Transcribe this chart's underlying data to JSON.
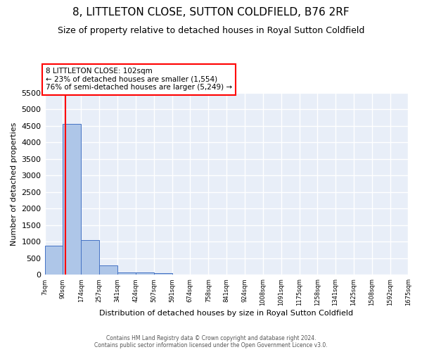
{
  "title": "8, LITTLETON CLOSE, SUTTON COLDFIELD, B76 2RF",
  "subtitle": "Size of property relative to detached houses in Royal Sutton Coldfield",
  "xlabel": "Distribution of detached houses by size in Royal Sutton Coldfield",
  "ylabel": "Number of detached properties",
  "footer_line1": "Contains HM Land Registry data © Crown copyright and database right 2024.",
  "footer_line2": "Contains public sector information licensed under the Open Government Licence v3.0.",
  "bar_edges": [
    7,
    90,
    174,
    257,
    341,
    424,
    507,
    591,
    674,
    758,
    841,
    924,
    1008,
    1091,
    1175,
    1258,
    1341,
    1425,
    1508,
    1592,
    1675
  ],
  "bar_heights": [
    880,
    4560,
    1060,
    290,
    80,
    70,
    50,
    0,
    0,
    0,
    0,
    0,
    0,
    0,
    0,
    0,
    0,
    0,
    0,
    0
  ],
  "bar_color": "#aec6e8",
  "bar_edge_color": "#4472c4",
  "property_line_x": 102,
  "property_line_color": "red",
  "annotation_text": "8 LITTLETON CLOSE: 102sqm\n← 23% of detached houses are smaller (1,554)\n76% of semi-detached houses are larger (5,249) →",
  "annotation_box_color": "red",
  "ylim": [
    0,
    5500
  ],
  "yticks": [
    0,
    500,
    1000,
    1500,
    2000,
    2500,
    3000,
    3500,
    4000,
    4500,
    5000,
    5500
  ],
  "background_color": "#e8eef8",
  "grid_color": "#ffffff",
  "title_fontsize": 11,
  "subtitle_fontsize": 9,
  "axis_label_fontsize": 8
}
